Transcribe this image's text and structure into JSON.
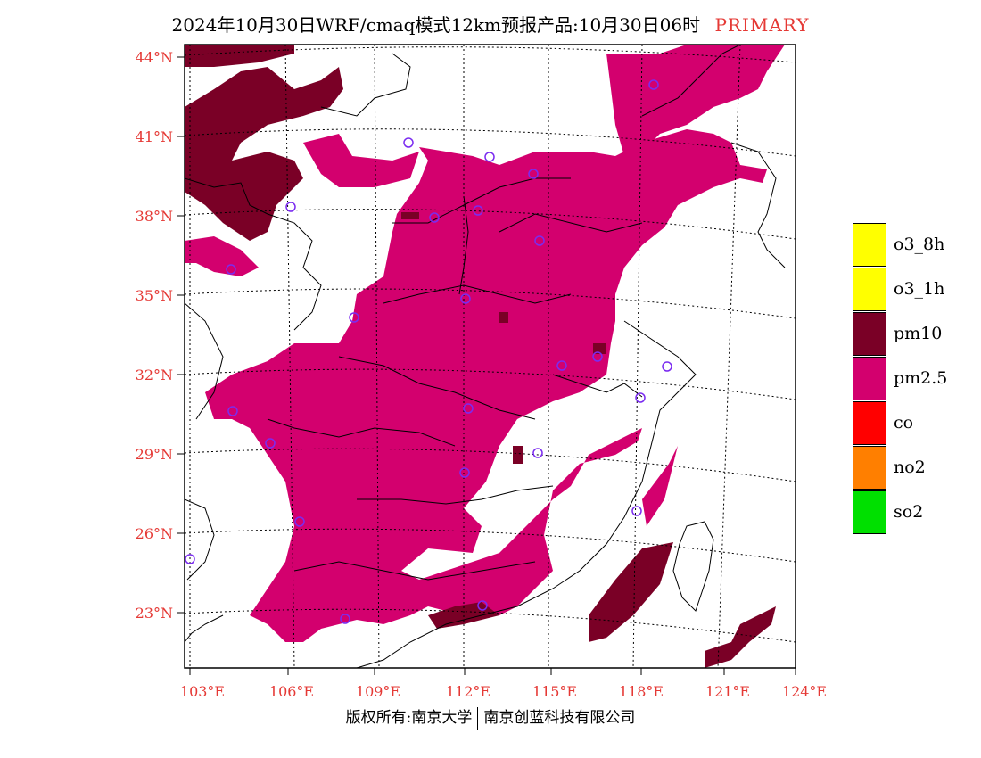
{
  "title": {
    "main": "2024年10月30日WRF/cmaq模式12km预报产品:10月30日06时",
    "tag": "PRIMARY"
  },
  "axes": {
    "lat_labels": [
      "44°N",
      "41°N",
      "38°N",
      "35°N",
      "32°N",
      "29°N",
      "26°N",
      "23°N"
    ],
    "lon_labels": [
      "103°E",
      "106°E",
      "109°E",
      "112°E",
      "115°E",
      "118°E",
      "121°E",
      "124°E"
    ]
  },
  "legend": [
    {
      "label": "o3_8h",
      "color": "#ffff00"
    },
    {
      "label": "o3_1h",
      "color": "#ffff00"
    },
    {
      "label": "pm10",
      "color": "#7a0026"
    },
    {
      "label": "pm2.5",
      "color": "#d3006e"
    },
    {
      "label": "co",
      "color": "#ff0000"
    },
    {
      "label": "no2",
      "color": "#ff7f00"
    },
    {
      "label": "so2",
      "color": "#00e000"
    }
  ],
  "colors": {
    "pm25": "#d3006e",
    "pm10": "#7a0026",
    "station": "#7b2cf0",
    "axis_label": "#e53935"
  },
  "footer": {
    "left": "版权所有:南京大学",
    "right": "南京创蓝科技有限公司"
  }
}
